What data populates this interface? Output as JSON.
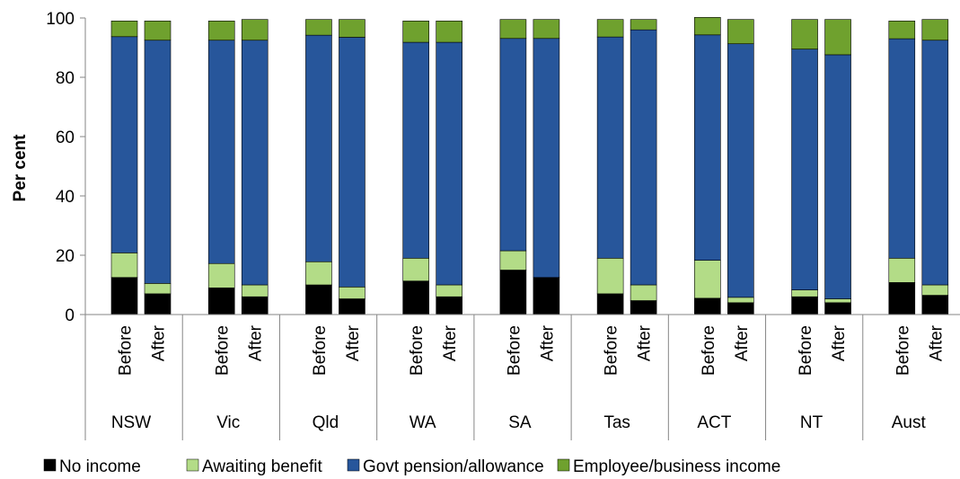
{
  "chart_data": {
    "type": "bar",
    "stacked": true,
    "ylabel": "Per cent",
    "ylim": [
      0,
      100
    ],
    "yticks": [
      0,
      20,
      40,
      60,
      80,
      100
    ],
    "groups": [
      {
        "label": "NSW",
        "bars": [
          {
            "label": "Before",
            "values": [
              12.5,
              8.3,
              72.9,
              5.3
            ]
          },
          {
            "label": "After",
            "values": [
              7.0,
              3.5,
              82.0,
              6.5
            ]
          }
        ]
      },
      {
        "label": "Vic",
        "bars": [
          {
            "label": "Before",
            "values": [
              9.0,
              8.2,
              75.3,
              6.5
            ]
          },
          {
            "label": "After",
            "values": [
              6.0,
              4.0,
              82.5,
              7.0
            ]
          }
        ]
      },
      {
        "label": "Qld",
        "bars": [
          {
            "label": "Before",
            "values": [
              10.0,
              7.8,
              76.4,
              5.3
            ]
          },
          {
            "label": "After",
            "values": [
              5.3,
              4.0,
              84.2,
              6.0
            ]
          }
        ]
      },
      {
        "label": "WA",
        "bars": [
          {
            "label": "Before",
            "values": [
              11.3,
              7.7,
              72.8,
              7.2
            ]
          },
          {
            "label": "After",
            "values": [
              6.0,
              4.0,
              81.8,
              7.2
            ]
          }
        ]
      },
      {
        "label": "SA",
        "bars": [
          {
            "label": "Before",
            "values": [
              15.0,
              6.5,
              71.6,
              6.4
            ]
          },
          {
            "label": "After",
            "values": [
              12.5,
              0.0,
              80.6,
              6.4
            ]
          }
        ]
      },
      {
        "label": "Tas",
        "bars": [
          {
            "label": "Before",
            "values": [
              7.0,
              12.0,
              74.6,
              5.9
            ]
          },
          {
            "label": "After",
            "values": [
              4.7,
              5.3,
              86.0,
              3.5
            ]
          }
        ]
      },
      {
        "label": "ACT",
        "bars": [
          {
            "label": "Before",
            "values": [
              5.5,
              12.8,
              76.0,
              5.9
            ]
          },
          {
            "label": "After",
            "values": [
              4.0,
              1.8,
              85.5,
              8.2
            ]
          }
        ]
      },
      {
        "label": "NT",
        "bars": [
          {
            "label": "Before",
            "values": [
              6.0,
              2.3,
              81.2,
              10.0
            ]
          },
          {
            "label": "After",
            "values": [
              4.0,
              1.3,
              82.3,
              11.9
            ]
          }
        ]
      },
      {
        "label": "Aust",
        "bars": [
          {
            "label": "Before",
            "values": [
              10.8,
              8.2,
              74.0,
              6.0
            ]
          },
          {
            "label": "After",
            "values": [
              6.5,
              3.5,
              82.5,
              7.0
            ]
          }
        ]
      }
    ],
    "series": [
      {
        "name": "No income",
        "color": "#000000"
      },
      {
        "name": "Awaiting benefit",
        "color": "#b3dc87"
      },
      {
        "name": "Govt pension/allowance",
        "color": "#27569b"
      },
      {
        "name": "Employee/business income",
        "color": "#6fa12e"
      }
    ],
    "legend_position": "bottom",
    "grid": false
  }
}
